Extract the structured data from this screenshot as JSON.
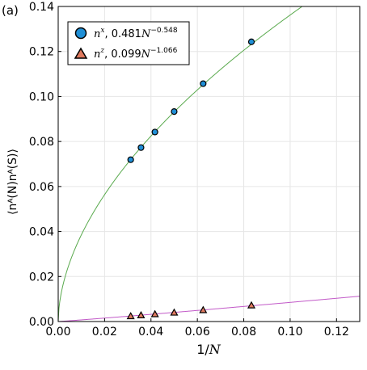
{
  "panel_label": "(a)",
  "chart_data": {
    "type": "scatter",
    "xlabel_main": "1/",
    "xlabel_var": "N",
    "ylabel": "⟨nᴬ(N)nᴬ(S)⟩",
    "xlim": [
      0,
      0.13
    ],
    "ylim": [
      0,
      0.14
    ],
    "xticks": [
      0.0,
      0.02,
      0.04,
      0.06,
      0.08,
      0.1,
      0.12
    ],
    "yticks": [
      0.0,
      0.02,
      0.04,
      0.06,
      0.08,
      0.1,
      0.12,
      0.14
    ],
    "xtick_labels": [
      "0.00",
      "0.02",
      "0.04",
      "0.06",
      "0.08",
      "0.10",
      "0.12"
    ],
    "ytick_labels": [
      "0.00",
      "0.02",
      "0.04",
      "0.06",
      "0.08",
      "0.10",
      "0.12",
      "0.14"
    ],
    "grid": true,
    "legend_position": "top-left",
    "series": [
      {
        "name": "nˣ, 0.481N⁻⁰·⁵⁴⁸",
        "legend_var": "n",
        "legend_sup": "x",
        "legend_fit": ", 0.481",
        "legend_N": "N",
        "legend_exp": "−0.548",
        "marker": "circle",
        "marker_color": "#1f8fd6",
        "fit_color": "#5aaa4e",
        "fit_coef": 0.481,
        "fit_exp": 0.548,
        "x": [
          0.03125,
          0.0357,
          0.0417,
          0.05,
          0.0625,
          0.0833
        ],
        "y": [
          0.0719,
          0.0773,
          0.0842,
          0.0933,
          0.1057,
          0.1243
        ]
      },
      {
        "name": "nᶻ, 0.099N⁻¹·⁰⁶⁶",
        "legend_var": "n",
        "legend_sup": "z",
        "legend_fit": ", 0.099",
        "legend_N": "N",
        "legend_exp": "−1.066",
        "marker": "triangle",
        "marker_color": "#e07a5f",
        "fit_color": "#c25ac8",
        "fit_coef": 0.099,
        "fit_exp": 1.066,
        "x": [
          0.03125,
          0.0357,
          0.0417,
          0.05,
          0.0625,
          0.0833
        ],
        "y": [
          0.0024,
          0.0028,
          0.0033,
          0.004,
          0.0051,
          0.0072
        ]
      }
    ]
  }
}
